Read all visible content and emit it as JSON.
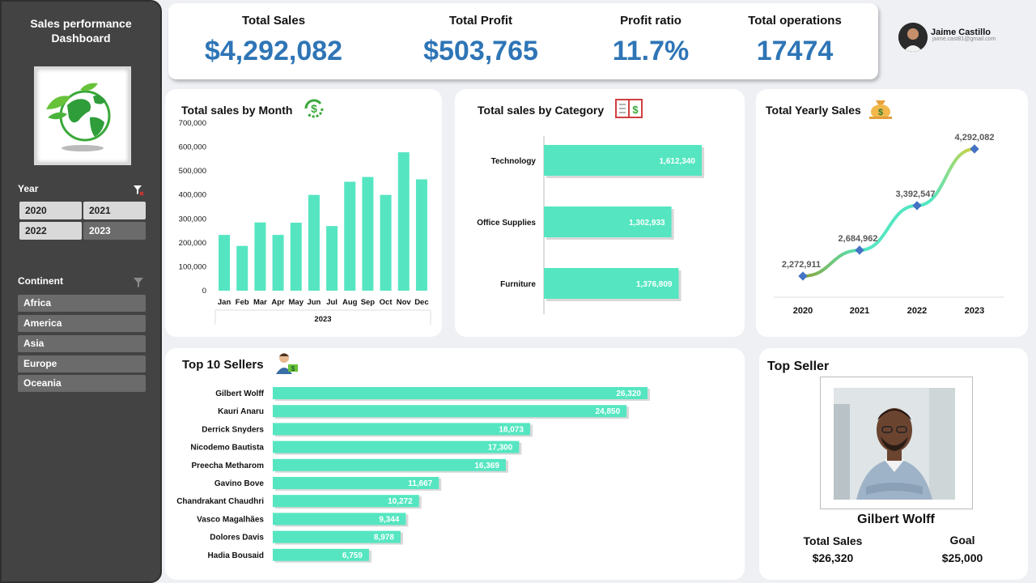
{
  "sidebar": {
    "title_line1": "Sales performance",
    "title_line2": "Dashboard",
    "logo_icon": "earth-leaf-logo",
    "year_label": "Year",
    "years": [
      "2020",
      "2021",
      "2022",
      "2023"
    ],
    "continent_label": "Continent",
    "continents": [
      "Africa",
      "America",
      "Asia",
      "Europe",
      "Oceania"
    ]
  },
  "kpis": [
    {
      "label": "Total Sales",
      "value": "$4,292,082"
    },
    {
      "label": "Total Profit",
      "value": "$503,765"
    },
    {
      "label": "Profit ratio",
      "value": "11.7%"
    },
    {
      "label": "Total operations",
      "value": "17474"
    }
  ],
  "user": {
    "name": "Jaime Castillo",
    "email": "jaime.cast81@gmail.com"
  },
  "colors": {
    "bar": "#55e6c1",
    "accent": "#2e75b6",
    "sidebar": "#434343"
  },
  "monthly": {
    "title": "Total sales by Month",
    "icon": "dollar-cycle-icon",
    "xlabel": "2023"
  },
  "category": {
    "title": "Total sales by Category",
    "icon": "ledger-book-icon"
  },
  "yearly": {
    "title": "Total Yearly Sales",
    "icon": "money-bag-icon"
  },
  "sellers": {
    "title": "Top 10 Sellers",
    "icon": "businessman-money-icon"
  },
  "top_seller": {
    "title": "Top Seller",
    "name": "Gilbert Wolff",
    "sales_label": "Total Sales",
    "sales_value": "$26,320",
    "goal_label": "Goal",
    "goal_value": "$25,000"
  },
  "chart_data": [
    {
      "type": "bar",
      "title": "Total sales by Month",
      "categories": [
        "Jan",
        "Feb",
        "Mar",
        "Apr",
        "May",
        "Jun",
        "Jul",
        "Aug",
        "Sep",
        "Oct",
        "Nov",
        "Dec"
      ],
      "values": [
        233000,
        187000,
        285000,
        233000,
        284000,
        400000,
        270000,
        455000,
        475000,
        400000,
        578000,
        465000
      ],
      "xlabel": "2023",
      "ylim": [
        0,
        700000
      ],
      "yticks": [
        "0",
        "100,000",
        "200,000",
        "300,000",
        "400,000",
        "500,000",
        "600,000",
        "700,000"
      ]
    },
    {
      "type": "bar",
      "title": "Total sales by Category",
      "categories": [
        "Technology",
        "Office Supplies",
        "Furniture"
      ],
      "values": [
        1612340,
        1302933,
        1376809
      ],
      "labels": [
        "1,612,340",
        "1,302,933",
        "1,376,809"
      ]
    },
    {
      "type": "line",
      "title": "Total Yearly Sales",
      "x": [
        "2020",
        "2021",
        "2022",
        "2023"
      ],
      "values": [
        2272911,
        2684962,
        3392547,
        4292082
      ],
      "labels": [
        "2,272,911",
        "2,684,962",
        "3,392,547",
        "4,292,082"
      ]
    },
    {
      "type": "bar",
      "title": "Top 10 Sellers",
      "categories": [
        "Gilbert Wolff",
        "Kauri Anaru",
        "Derrick Snyders",
        "Nicodemo Bautista",
        "Preecha Metharom",
        "Gavino Bove",
        "Chandrakant Chaudhri",
        "Vasco Magalhães",
        "Dolores Davis",
        "Hadia Bousaid"
      ],
      "values": [
        26320,
        24850,
        18073,
        17300,
        16369,
        11667,
        10272,
        9344,
        8978,
        6759
      ],
      "labels": [
        "26,320",
        "24,850",
        "18,073",
        "17,300",
        "16,369",
        "11,667",
        "10,272",
        "9,344",
        "8,978",
        "6,759"
      ]
    }
  ]
}
